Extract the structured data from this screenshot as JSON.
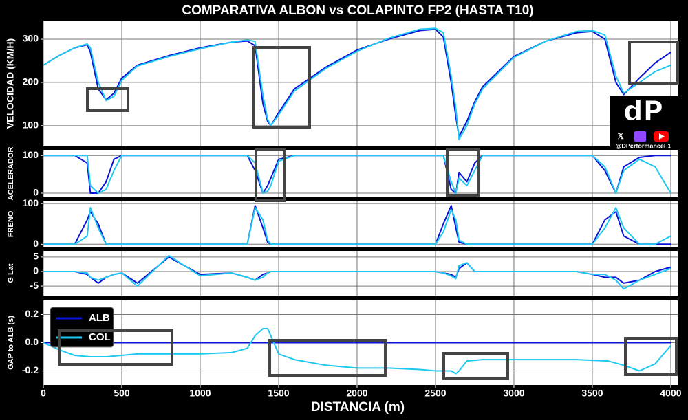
{
  "watermark": "@DPerformanceF1",
  "logo_text": "dP",
  "chart_data": [
    {
      "type": "line",
      "title": "COMPARATIVA ALBON vs COLAPINTO FP2 (HASTA T10)",
      "y_label": "VELOCIDAD (KM/H)",
      "x": [
        0,
        100,
        200,
        280,
        300,
        350,
        400,
        450,
        500,
        600,
        800,
        1000,
        1200,
        1300,
        1350,
        1400,
        1430,
        1450,
        1500,
        1600,
        1800,
        2000,
        2200,
        2400,
        2500,
        2550,
        2600,
        2630,
        2650,
        2700,
        2750,
        2800,
        3000,
        3200,
        3400,
        3500,
        3580,
        3650,
        3700,
        3800,
        3900,
        4000
      ],
      "series": [
        {
          "name": "ALB",
          "color": "#0a14d8",
          "values": [
            240,
            262,
            280,
            287,
            270,
            185,
            160,
            175,
            210,
            240,
            262,
            280,
            293,
            296,
            285,
            150,
            110,
            100,
            130,
            185,
            235,
            275,
            300,
            320,
            323,
            305,
            200,
            120,
            75,
            110,
            155,
            190,
            260,
            295,
            315,
            318,
            300,
            200,
            172,
            210,
            245,
            270
          ]
        },
        {
          "name": "COL",
          "color": "#1ec8f0",
          "values": [
            240,
            262,
            280,
            289,
            280,
            200,
            158,
            168,
            205,
            238,
            260,
            278,
            293,
            298,
            295,
            170,
            115,
            100,
            125,
            180,
            232,
            272,
            302,
            323,
            325,
            315,
            215,
            140,
            68,
            100,
            150,
            185,
            258,
            295,
            318,
            320,
            310,
            215,
            175,
            200,
            225,
            240
          ]
        }
      ],
      "xlim": [
        0,
        4044
      ],
      "xticks": [
        0,
        500,
        1000,
        1500,
        2000,
        2500,
        3000,
        3500,
        4000
      ],
      "ylim": [
        52,
        343
      ],
      "yticks": [
        100,
        200,
        300
      ],
      "grid": true
    },
    {
      "type": "line",
      "y_label": "ACELERADOR",
      "x": [
        0,
        100,
        200,
        280,
        300,
        350,
        400,
        450,
        500,
        600,
        800,
        1000,
        1200,
        1300,
        1350,
        1400,
        1430,
        1450,
        1500,
        1600,
        1800,
        2000,
        2200,
        2400,
        2500,
        2550,
        2600,
        2630,
        2650,
        2700,
        2750,
        2800,
        3000,
        3200,
        3400,
        3500,
        3580,
        3650,
        3700,
        3800,
        3900,
        4000
      ],
      "series": [
        {
          "name": "ALB",
          "color": "#0a14d8",
          "values": [
            100,
            100,
            100,
            80,
            0,
            0,
            30,
            90,
            100,
            100,
            100,
            100,
            100,
            100,
            60,
            0,
            20,
            40,
            90,
            100,
            100,
            100,
            100,
            100,
            100,
            100,
            10,
            0,
            55,
            30,
            80,
            100,
            100,
            100,
            100,
            100,
            60,
            0,
            70,
            95,
            100,
            100
          ]
        },
        {
          "name": "COL",
          "color": "#1ec8f0",
          "values": [
            100,
            100,
            100,
            100,
            20,
            0,
            10,
            60,
            100,
            100,
            100,
            100,
            100,
            100,
            80,
            0,
            5,
            20,
            85,
            100,
            100,
            100,
            100,
            100,
            100,
            100,
            30,
            0,
            40,
            20,
            60,
            100,
            100,
            100,
            100,
            100,
            70,
            0,
            60,
            90,
            70,
            0
          ]
        }
      ],
      "xlim": [
        0,
        4044
      ],
      "xticks": [
        0,
        500,
        1000,
        1500,
        2000,
        2500,
        3000,
        3500,
        4000
      ],
      "ylim": [
        -11,
        115
      ],
      "yticks": [
        0,
        100
      ],
      "grid": true
    },
    {
      "type": "line",
      "y_label": "FRENO",
      "x": [
        0,
        100,
        200,
        280,
        300,
        350,
        400,
        450,
        500,
        600,
        800,
        1000,
        1200,
        1300,
        1350,
        1400,
        1430,
        1450,
        1500,
        1600,
        1800,
        2000,
        2200,
        2400,
        2500,
        2550,
        2600,
        2630,
        2650,
        2700,
        2750,
        2800,
        3000,
        3200,
        3400,
        3500,
        3580,
        3650,
        3700,
        3800,
        3900,
        4000
      ],
      "series": [
        {
          "name": "ALB",
          "color": "#0a14d8",
          "values": [
            0,
            0,
            0,
            60,
            80,
            50,
            0,
            0,
            0,
            0,
            0,
            0,
            0,
            0,
            95,
            40,
            5,
            0,
            0,
            0,
            0,
            0,
            0,
            0,
            0,
            50,
            95,
            40,
            5,
            0,
            0,
            0,
            0,
            0,
            0,
            0,
            60,
            80,
            20,
            0,
            0,
            0
          ]
        },
        {
          "name": "COL",
          "color": "#1ec8f0",
          "values": [
            0,
            0,
            0,
            20,
            90,
            40,
            0,
            0,
            0,
            0,
            0,
            0,
            0,
            0,
            90,
            60,
            10,
            0,
            0,
            0,
            0,
            0,
            0,
            0,
            0,
            30,
            85,
            60,
            10,
            0,
            0,
            0,
            0,
            0,
            0,
            0,
            40,
            90,
            40,
            0,
            0,
            20
          ]
        }
      ],
      "xlim": [
        0,
        4044
      ],
      "xticks": [
        0,
        500,
        1000,
        1500,
        2000,
        2500,
        3000,
        3500,
        4000
      ],
      "ylim": [
        -8,
        107
      ],
      "yticks": [
        0,
        100
      ],
      "grid": true
    },
    {
      "type": "line",
      "y_label": "G Lat",
      "x": [
        0,
        100,
        200,
        280,
        300,
        350,
        400,
        450,
        500,
        600,
        800,
        1000,
        1200,
        1300,
        1350,
        1400,
        1430,
        1450,
        1500,
        1600,
        1800,
        2000,
        2200,
        2400,
        2500,
        2550,
        2600,
        2630,
        2650,
        2700,
        2750,
        2800,
        3000,
        3200,
        3400,
        3500,
        3580,
        3650,
        3700,
        3800,
        3900,
        4000
      ],
      "series": [
        {
          "name": "ALB",
          "color": "#0a14d8",
          "values": [
            0,
            0,
            0,
            -1,
            -2,
            -4,
            -2,
            -1,
            -0.5,
            -4,
            5,
            -1,
            -0.5,
            -2,
            -3,
            -1,
            -0.5,
            0,
            0,
            0,
            0,
            0,
            0,
            0,
            0,
            -0.5,
            -1,
            -2,
            1,
            3,
            0,
            0,
            0,
            0,
            0,
            -1,
            -2,
            -2,
            -4,
            -3,
            0,
            1.5
          ]
        },
        {
          "name": "COL",
          "color": "#1ec8f0",
          "values": [
            0,
            0,
            0,
            -0.5,
            -2,
            -3,
            -2,
            -1,
            -0.5,
            -5,
            5.5,
            -1.5,
            -0.5,
            -2,
            -3,
            -2,
            -0.5,
            0,
            0,
            0,
            0,
            0,
            0,
            0,
            0,
            -0.5,
            -1.5,
            -2.5,
            2,
            3,
            0,
            0,
            0,
            0,
            0,
            -1,
            -1,
            -3,
            -6,
            -3,
            -1,
            1
          ]
        }
      ],
      "xlim": [
        0,
        4044
      ],
      "xticks": [
        0,
        500,
        1000,
        1500,
        2000,
        2500,
        3000,
        3500,
        4000
      ],
      "ylim": [
        -8.3,
        7.1
      ],
      "yticks": [
        -5,
        0,
        5
      ],
      "grid": true
    },
    {
      "type": "line",
      "y_label": "GAP to ALB (s)",
      "x_label": "DISTANCIA (m)",
      "legend": "upper left",
      "x": [
        0,
        100,
        200,
        300,
        400,
        600,
        800,
        1000,
        1200,
        1300,
        1350,
        1400,
        1430,
        1450,
        1500,
        1600,
        1800,
        2000,
        2200,
        2400,
        2500,
        2600,
        2630,
        2650,
        2700,
        2800,
        3000,
        3200,
        3400,
        3600,
        3700,
        3800,
        3900,
        4000
      ],
      "series": [
        {
          "name": "ALB",
          "color": "#0a14d8",
          "values": [
            0,
            0,
            0,
            0,
            0,
            0,
            0,
            0,
            0,
            0,
            0,
            0,
            0,
            0,
            0,
            0,
            0,
            0,
            0,
            0,
            0,
            0,
            0,
            0,
            0,
            0,
            0,
            0,
            0,
            0,
            0,
            0,
            0,
            0
          ]
        },
        {
          "name": "COL",
          "color": "#1ec8f0",
          "values": [
            0,
            -0.05,
            -0.09,
            -0.1,
            -0.1,
            -0.08,
            -0.08,
            -0.08,
            -0.07,
            -0.04,
            0.05,
            0.1,
            0.1,
            0.05,
            -0.08,
            -0.12,
            -0.16,
            -0.18,
            -0.18,
            -0.19,
            -0.2,
            -0.2,
            -0.22,
            -0.2,
            -0.13,
            -0.12,
            -0.12,
            -0.12,
            -0.12,
            -0.13,
            -0.16,
            -0.2,
            -0.15,
            -0.02
          ]
        }
      ],
      "xlim": [
        0,
        4044
      ],
      "xticks": [
        0,
        500,
        1000,
        1500,
        2000,
        2500,
        3000,
        3500,
        4000
      ],
      "ylim": [
        -0.3,
        0.3
      ],
      "yticks": [
        {
          "value": -0.2,
          "label": "-0.2"
        },
        {
          "value": 0,
          "label": "0.0"
        },
        {
          "value": 0.2,
          "label": "0.2"
        }
      ],
      "grid": true
    }
  ]
}
